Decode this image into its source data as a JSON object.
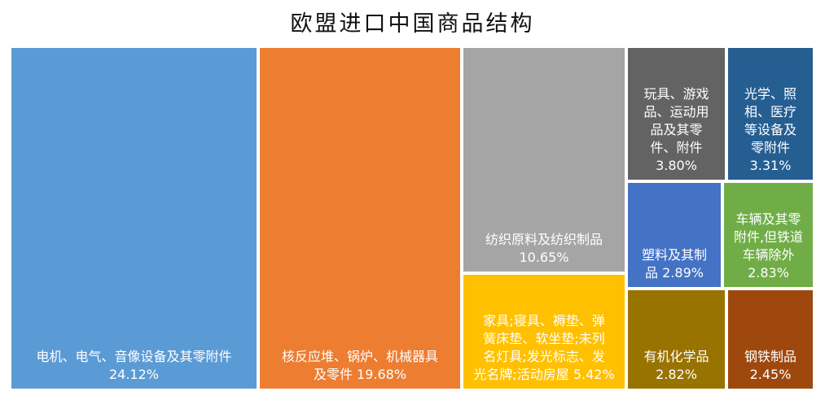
{
  "chart_data": {
    "type": "treemap",
    "title": "欧盟进口中国商品结构",
    "items": [
      {
        "name": "电机、电气、音像设备及其零附件",
        "value": 24.12,
        "value_label": "24.12%",
        "color": "#5b9bd5"
      },
      {
        "name": "核反应堆、锅炉、机械器具及零件",
        "value": 19.68,
        "value_label": "19.68%",
        "color": "#ed7d31"
      },
      {
        "name": "纺织原料及纺织制品",
        "value": 10.65,
        "value_label": "10.65%",
        "color": "#a5a5a5"
      },
      {
        "name": "家具;寝具、褥垫、弹簧床垫、软坐垫;未列名灯具;发光标志、发光名牌;活动房屋",
        "value": 5.42,
        "value_label": "5.42%",
        "color": "#ffc000"
      },
      {
        "name": "玩具、游戏品、运动用品及其零件、附件",
        "value": 3.8,
        "value_label": "3.80%",
        "color": "#636363"
      },
      {
        "name": "光学、照相、医疗等设备及零附件",
        "value": 3.31,
        "value_label": "3.31%",
        "color": "#255e91"
      },
      {
        "name": "塑料及其制品",
        "value": 2.89,
        "value_label": "2.89%",
        "color": "#4472c4"
      },
      {
        "name": "车辆及其零附件,但铁道车辆除外",
        "value": 2.83,
        "value_label": "2.83%",
        "color": "#70ad47"
      },
      {
        "name": "有机化学品",
        "value": 2.82,
        "value_label": "2.82%",
        "color": "#997300"
      },
      {
        "name": "钢铁制品",
        "value": 2.45,
        "value_label": "2.45%",
        "color": "#9e480e"
      }
    ]
  }
}
